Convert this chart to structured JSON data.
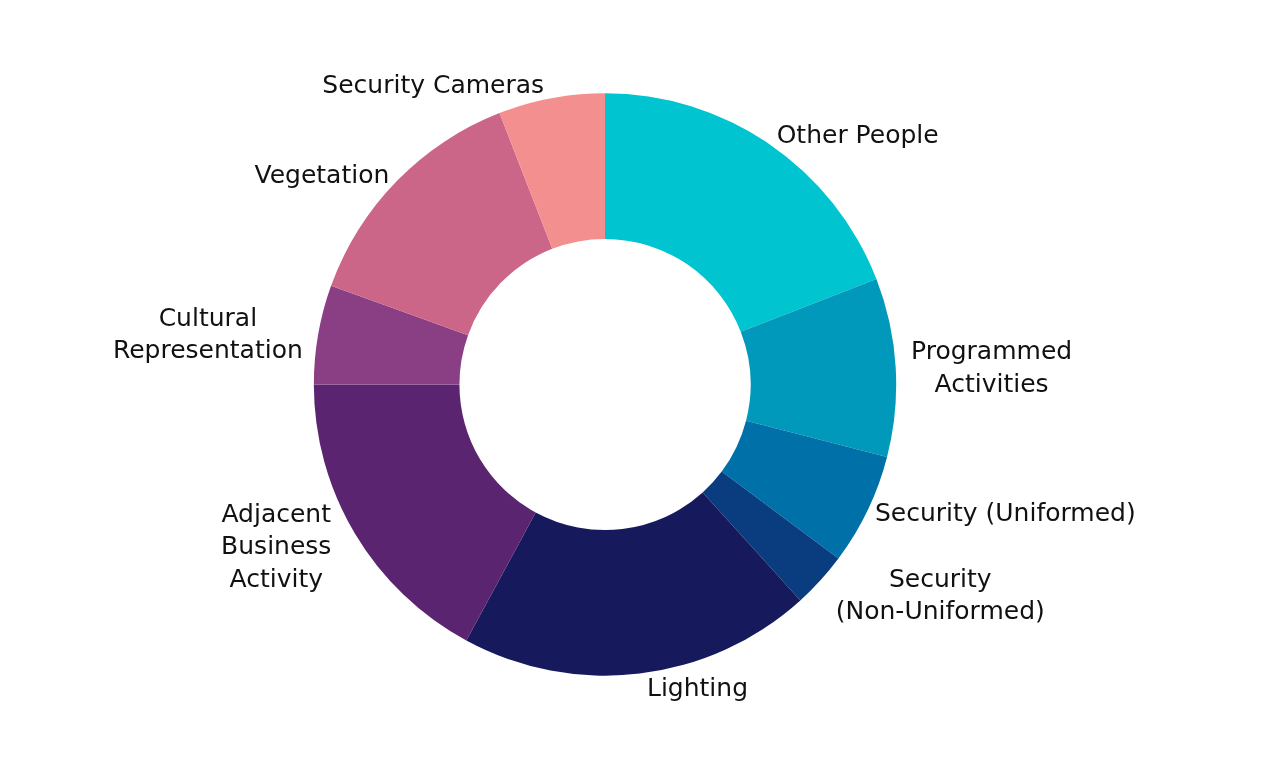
{
  "chart_data": {
    "type": "donut",
    "categories": [
      "Other People",
      "Programmed Activities",
      "Security (Uniformed)",
      "Security (Non-Uniformed)",
      "Lighting",
      "Adjacent Business Activity",
      "Cultural Representation",
      "Vegetation",
      "Security Cameras"
    ],
    "values": [
      19.1,
      9.9,
      6.2,
      3.1,
      19.6,
      17.1,
      5.5,
      13.6,
      5.9
    ],
    "colors": [
      "#00c4d0",
      "#0099bb",
      "#0070a8",
      "#0a3d7f",
      "#161a5c",
      "#5a2470",
      "#8a3f85",
      "#cc6688",
      "#f48f8f"
    ],
    "legend": false
  }
}
